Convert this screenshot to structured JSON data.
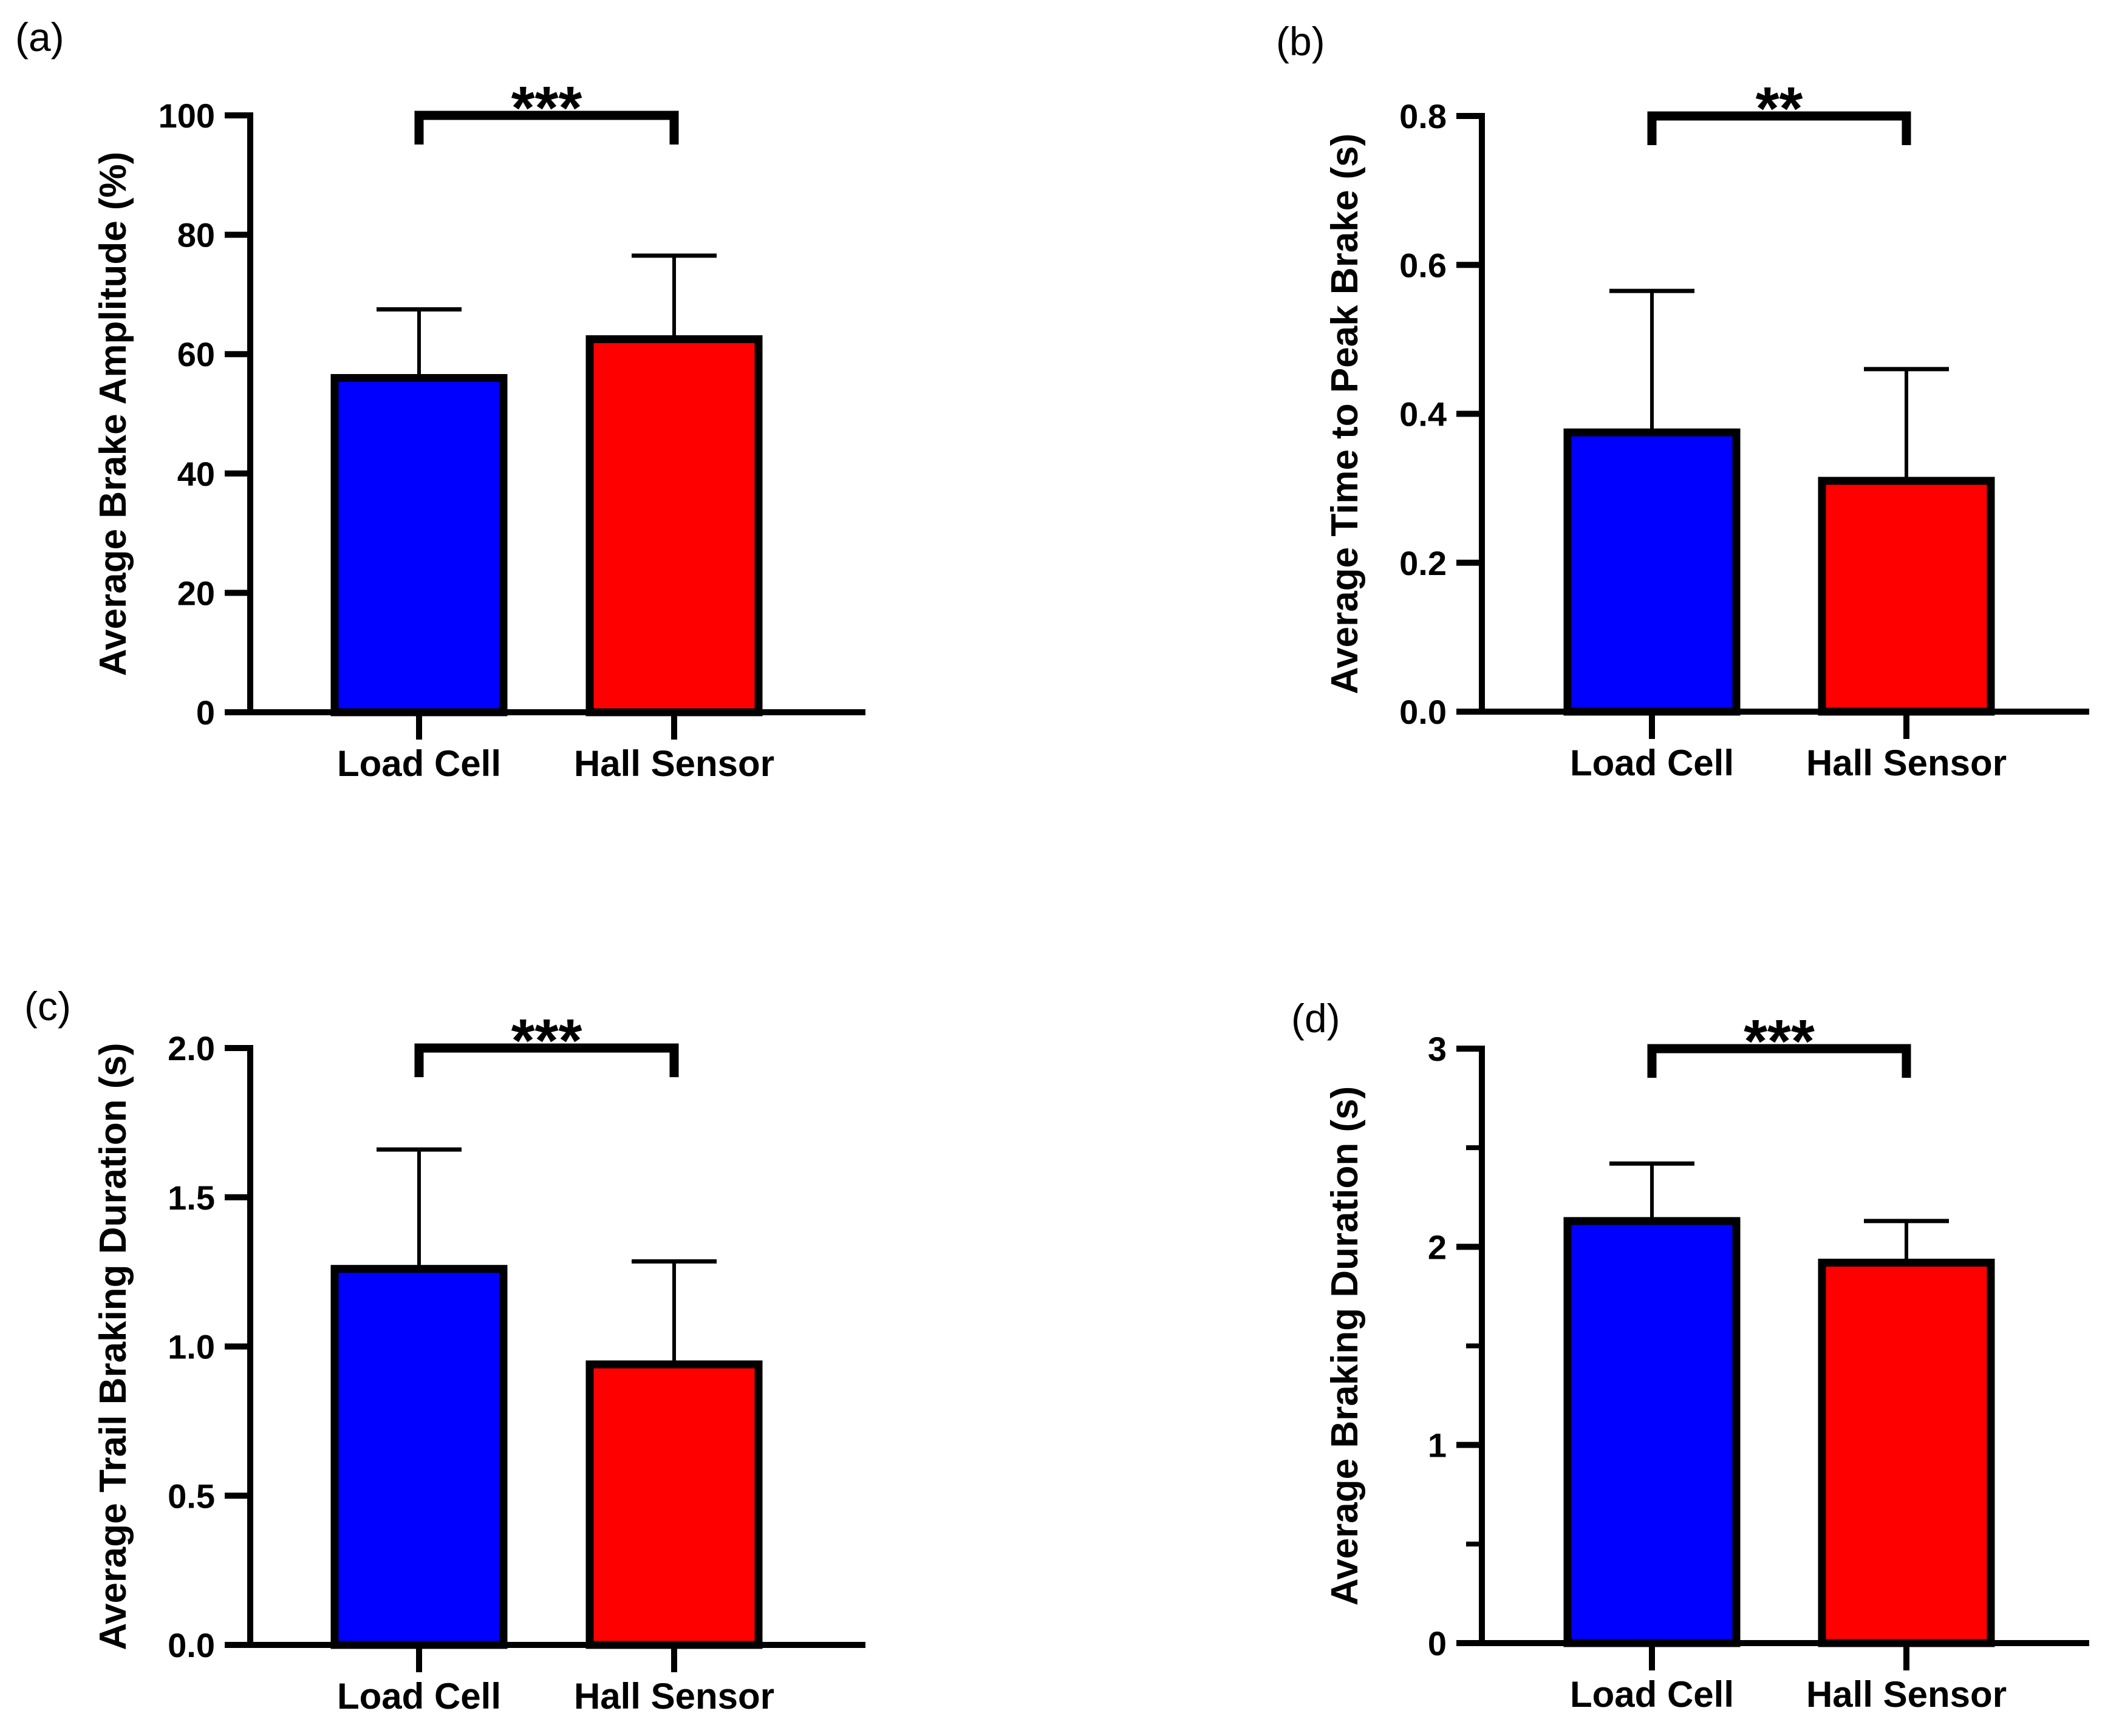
{
  "figure_background": "#ffffff",
  "accent_colors": {
    "bar_blue": "#0000ff",
    "bar_red": "#ff0000",
    "line_black": "#000000"
  },
  "chart_data": [
    {
      "type": "bar",
      "panel_label": "(a)",
      "ylabel": "Average Brake Amplitude (%)",
      "xlabel": "",
      "categories": [
        "Load Cell",
        "Hall Sensor"
      ],
      "values": [
        56,
        62.5
      ],
      "errors_upper": [
        11.5,
        14
      ],
      "bar_colors": [
        "#0000ff",
        "#ff0000"
      ],
      "ylim": [
        0,
        100
      ],
      "ytick_labels": [
        "0",
        "20",
        "40",
        "60",
        "80",
        "100"
      ],
      "minor_yticks": [],
      "significance": "***",
      "grid": false,
      "legend": false
    },
    {
      "type": "bar",
      "panel_label": "(b)",
      "ylabel": "Average Time to Peak Brake (s)",
      "xlabel": "",
      "categories": [
        "Load Cell",
        "Hall Sensor"
      ],
      "values": [
        0.375,
        0.31
      ],
      "errors_upper": [
        0.19,
        0.15
      ],
      "bar_colors": [
        "#0000ff",
        "#ff0000"
      ],
      "ylim": [
        0,
        0.8
      ],
      "ytick_labels": [
        "0.0",
        "0.2",
        "0.4",
        "0.6",
        "0.8"
      ],
      "minor_yticks": [],
      "significance": "**",
      "grid": false,
      "legend": false
    },
    {
      "type": "bar",
      "panel_label": "(c)",
      "ylabel": "Average Trail Braking Duration (s)",
      "xlabel": "",
      "categories": [
        "Load Cell",
        "Hall Sensor"
      ],
      "values": [
        1.26,
        0.94
      ],
      "errors_upper": [
        0.4,
        0.345
      ],
      "bar_colors": [
        "#0000ff",
        "#ff0000"
      ],
      "ylim": [
        0,
        2
      ],
      "ytick_labels": [
        "0.0",
        "0.5",
        "1.0",
        "1.5",
        "2.0"
      ],
      "minor_yticks": [],
      "significance": "***",
      "grid": false,
      "legend": false
    },
    {
      "type": "bar",
      "panel_label": "(d)",
      "ylabel": "Average Braking Duration (s)",
      "xlabel": "",
      "categories": [
        "Load Cell",
        "Hall Sensor"
      ],
      "values": [
        2.13,
        1.92
      ],
      "errors_upper": [
        0.29,
        0.21
      ],
      "bar_colors": [
        "#0000ff",
        "#ff0000"
      ],
      "ylim": [
        0,
        3
      ],
      "ytick_labels": [
        "0",
        "1",
        "2",
        "3"
      ],
      "minor_yticks": [
        0.5,
        1.5,
        2.5
      ],
      "significance": "***",
      "grid": false,
      "legend": false
    }
  ]
}
